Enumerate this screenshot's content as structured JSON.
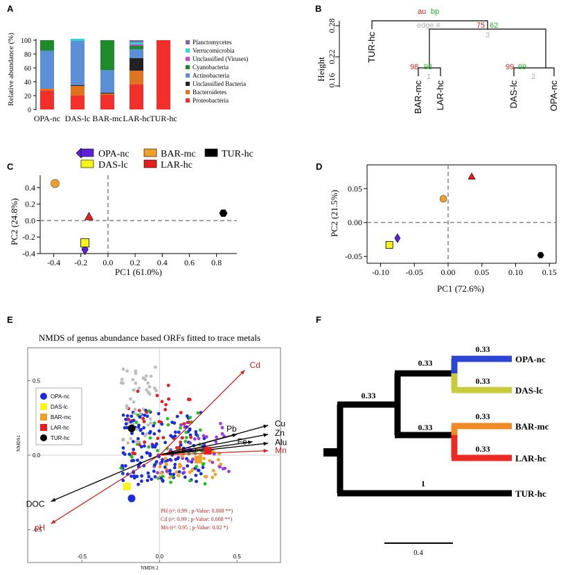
{
  "panel_labels": {
    "a": "A",
    "b": "B",
    "c": "C",
    "d": "D",
    "e": "E",
    "f": "F"
  },
  "colors": {
    "Planctomycetes": "#7b68a8",
    "Verrucomicrobia": "#33d6d6",
    "Unclassified (Viruses)": "#c84bd0",
    "Cyanobacteria": "#1f8a2a",
    "Actinobacteria": "#5b8fd6",
    "Unclassified Bacteria": "#222222",
    "Bacteroidetes": "#e0731f",
    "Proteobacteria": "#f22f2a",
    "OPA-nc": "#5b21d6",
    "DAS-lc": "#f5f51a",
    "BAR-mc": "#f0a028",
    "LAR-hc": "#e81e1e",
    "TUR-hc": "#000000",
    "au": "#d42020",
    "bp": "#22b022",
    "edge": "#b0b0b0"
  },
  "chart_data": [
    {
      "id": "A",
      "type": "bar",
      "stacked": true,
      "ylabel": "Relative abundance (%)",
      "ylim": [
        0,
        100
      ],
      "yticks": [
        "0",
        "20",
        "40",
        "60",
        "80",
        "100"
      ],
      "categories": [
        "OPA-nc",
        "DAS-lc",
        "BAR-mc",
        "LAR-hc",
        "TUR-hc"
      ],
      "series": [
        {
          "name": "Proteobacteria",
          "values": [
            27,
            20,
            21,
            36,
            100
          ]
        },
        {
          "name": "Bacteroidetes",
          "values": [
            3,
            14,
            2,
            20,
            0
          ]
        },
        {
          "name": "Unclassified Bacteria",
          "values": [
            0,
            1,
            1,
            18,
            0
          ]
        },
        {
          "name": "Actinobacteria",
          "values": [
            55,
            64,
            33,
            13,
            0
          ]
        },
        {
          "name": "Cyanobacteria",
          "values": [
            15,
            0,
            43,
            5,
            0
          ]
        },
        {
          "name": "Unclassified (Viruses)",
          "values": [
            0,
            0,
            0,
            2,
            0
          ]
        },
        {
          "name": "Verrucomicrobia",
          "values": [
            0,
            3,
            0,
            3,
            0
          ]
        },
        {
          "name": "Planctomycetes",
          "values": [
            0,
            0,
            0,
            3,
            0
          ]
        }
      ],
      "legend": [
        "Planctomycetes",
        "Verrucomicrobia",
        "Unclassified (Viruses)",
        "Cyanobacteria",
        "Actinobacteria",
        "Unclassified Bacteria",
        "Bacteroidetes",
        "Proteobacteria"
      ]
    },
    {
      "id": "B",
      "type": "dendrogram",
      "ylabel": "Height",
      "yticks": [
        "0.16",
        "0.22",
        "0.28"
      ],
      "leaves": [
        "TUR-hc",
        "BAR-mc",
        "LAR-hc",
        "DAS-lc",
        "OPA-nc"
      ],
      "header": {
        "au": "au",
        "bp": "bp",
        "edge": "edge #"
      },
      "nodes": [
        {
          "au": "98",
          "bp": "98",
          "edge": "1"
        },
        {
          "au": "99",
          "bp": "99",
          "edge": "2"
        },
        {
          "au": "75",
          "bp": "62",
          "edge": "3"
        }
      ]
    },
    {
      "id": "C",
      "type": "scatter",
      "xlabel": "PC1 (61.0%)",
      "ylabel": "PC2 (24.8%)",
      "xlim": [
        -0.5,
        0.95
      ],
      "ylim": [
        -0.4,
        0.55
      ],
      "xticks": [
        "-0.4",
        "-0.2",
        "0.0",
        "0.2",
        "0.4",
        "0.6",
        "0.8"
      ],
      "yticks": [
        "-0.4",
        "-0.2",
        "0.0",
        "0.2",
        "0.4"
      ],
      "legend": [
        "OPA-nc",
        "DAS-lc",
        "BAR-mc",
        "LAR-hc",
        "TUR-hc"
      ],
      "points": [
        {
          "sample": "OPA-nc",
          "x": -0.17,
          "y": -0.35,
          "shape": "diamond"
        },
        {
          "sample": "DAS-lc",
          "x": -0.17,
          "y": -0.27,
          "shape": "square"
        },
        {
          "sample": "BAR-mc",
          "x": -0.39,
          "y": 0.45,
          "shape": "circle"
        },
        {
          "sample": "LAR-hc",
          "x": -0.14,
          "y": 0.05,
          "shape": "triangle"
        },
        {
          "sample": "TUR-hc",
          "x": 0.85,
          "y": 0.09,
          "shape": "hexagon"
        }
      ]
    },
    {
      "id": "D",
      "type": "scatter",
      "xlabel": "PC1 (72.6%)",
      "ylabel": "PC2 (21.5%)",
      "xlim": [
        -0.12,
        0.16
      ],
      "ylim": [
        -0.06,
        0.085
      ],
      "xticks": [
        "-0.10",
        "-0.05",
        "0.00",
        "0.05",
        "0.10",
        "0.15"
      ],
      "yticks": [
        "-0.05",
        "0.00",
        "0.05"
      ],
      "points": [
        {
          "sample": "OPA-nc",
          "x": -0.075,
          "y": -0.023,
          "shape": "diamond"
        },
        {
          "sample": "DAS-lc",
          "x": -0.087,
          "y": -0.033,
          "shape": "square"
        },
        {
          "sample": "BAR-mc",
          "x": -0.007,
          "y": 0.035,
          "shape": "circle"
        },
        {
          "sample": "LAR-hc",
          "x": 0.035,
          "y": 0.068,
          "shape": "triangle"
        },
        {
          "sample": "TUR-hc",
          "x": 0.137,
          "y": -0.048,
          "shape": "hexagon"
        }
      ]
    },
    {
      "id": "E",
      "type": "scatter",
      "title": "NMDS of genus abundance based ORFs fitted to trace metals",
      "xlabel": "NMDS 2",
      "ylabel": "NMDS1",
      "xlim": [
        -0.85,
        0.78
      ],
      "ylim": [
        -0.72,
        0.72
      ],
      "xticks": [
        "-0.5",
        "0.0",
        "0.5"
      ],
      "yticks": [
        "-0.5",
        "0.0",
        "0.5"
      ],
      "legend": [
        "OPA-nc",
        "DAS-lc",
        "BAR-mc",
        "LAR-hc",
        "TUR-hc"
      ],
      "sample_points": [
        {
          "sample": "OPA-nc",
          "x": -0.18,
          "y": -0.29,
          "shape": "circle"
        },
        {
          "sample": "DAS-lc",
          "x": -0.21,
          "y": -0.21,
          "shape": "square"
        },
        {
          "sample": "BAR-mc",
          "x": 0.25,
          "y": -0.03,
          "shape": "square"
        },
        {
          "sample": "LAR-hc",
          "x": 0.31,
          "y": 0.03,
          "shape": "square"
        },
        {
          "sample": "TUR-hc",
          "x": -0.18,
          "y": 0.18,
          "shape": "circle"
        }
      ],
      "vectors": [
        {
          "label": "Cd",
          "x": 0.55,
          "y": 0.57,
          "color": "red"
        },
        {
          "label": "Cu",
          "x": 0.7,
          "y": 0.2,
          "color": "black"
        },
        {
          "label": "Zn",
          "x": 0.7,
          "y": 0.14,
          "color": "black"
        },
        {
          "label": "Pb",
          "x": 0.5,
          "y": 0.14,
          "color": "black"
        },
        {
          "label": "Fe",
          "x": 0.6,
          "y": 0.09,
          "color": "black"
        },
        {
          "label": "Alu",
          "x": 0.7,
          "y": 0.08,
          "color": "black"
        },
        {
          "label": "Mn",
          "x": 0.7,
          "y": 0.03,
          "color": "red"
        },
        {
          "label": "DOC",
          "x": -0.7,
          "y": -0.31,
          "color": "black"
        },
        {
          "label": "pH",
          "x": -0.7,
          "y": -0.46,
          "color": "red"
        }
      ],
      "stats": [
        "PH (r²: 0.99 ; p-Value: 0.008 **)",
        "Cd (r²: 0.99 ; p-Value: 0.008 **)",
        "Mn (r²: 0.95 ; p-Value: 0.02 *)"
      ]
    },
    {
      "id": "F",
      "type": "tree",
      "leaves": [
        "OPA-nc",
        "DAS-lc",
        "BAR-mc",
        "LAR-hc",
        "TUR-hc"
      ],
      "branch_labels": [
        "0.33",
        "0.33",
        "0.33",
        "0.33",
        "0.33",
        "0.33",
        "0.33",
        "1"
      ],
      "scale": "0.4"
    }
  ]
}
